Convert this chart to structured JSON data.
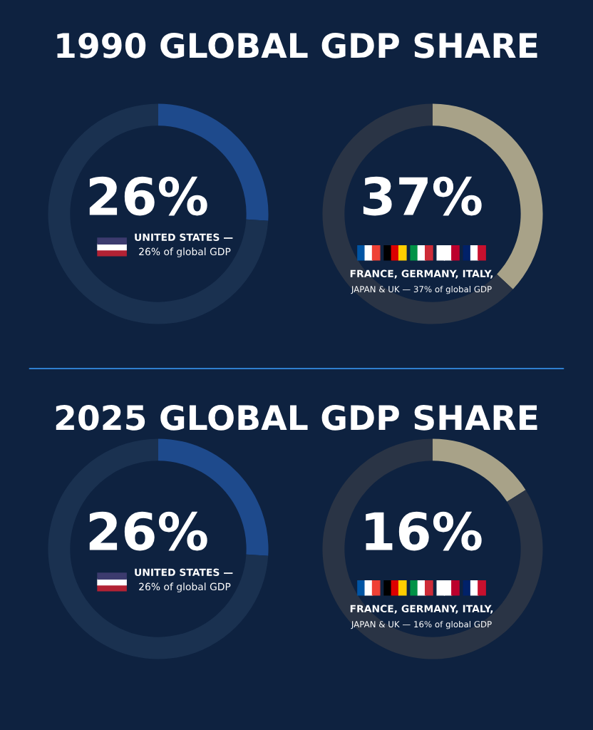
{
  "chart_data": [
    {
      "type": "donut",
      "title": "1990 GLOBAL GDP SHARE",
      "categories": [
        null,
        null
      ],
      "values": [
        26,
        74
      ],
      "colors": [
        "#1e4a8c",
        "#1a3150"
      ],
      "annotations": [
        "26%",
        "UNITED STATES —",
        "26% of global GDP"
      ]
    },
    {
      "type": "donut",
      "categories": [
        null,
        null
      ],
      "values": [
        37,
        63
      ],
      "colors": [
        "#a8a288",
        "#2a3445"
      ],
      "annotations": [
        "37%",
        "FRANCE, GERMANY, ITALY,",
        "JAPAN & UK — 37% of global GDP"
      ]
    },
    {
      "type": "donut",
      "title": "2025 GLOBAL GDP SHARE",
      "categories": [
        null,
        null
      ],
      "values": [
        26,
        74
      ],
      "colors": [
        "#1e4a8c",
        "#1a3150"
      ],
      "annotations": [
        "26%",
        "UNITED STATES —",
        "26% of global GDP"
      ]
    },
    {
      "type": "donut",
      "categories": [
        null,
        null
      ],
      "values": [
        16,
        84
      ],
      "colors": [
        "#a8a288",
        "#2a3445"
      ],
      "annotations": [
        "16%",
        "FRANCE, GERMANY, ITALY,",
        "JAPAN & UK — 16% of global GDP"
      ]
    }
  ]
}
